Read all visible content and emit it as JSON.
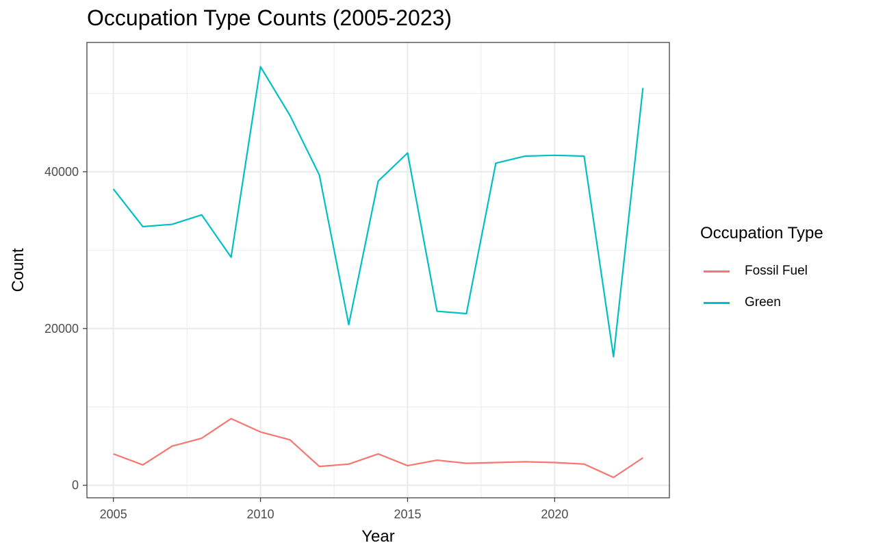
{
  "chart_data": {
    "type": "line",
    "title": "Occupation Type Counts (2005-2023)",
    "xlabel": "Year",
    "ylabel": "Count",
    "x": [
      2005,
      2006,
      2007,
      2008,
      2009,
      2010,
      2011,
      2012,
      2013,
      2014,
      2015,
      2016,
      2017,
      2018,
      2019,
      2020,
      2021,
      2022,
      2023
    ],
    "series": [
      {
        "name": "Fossil Fuel",
        "color": "#F8766D",
        "values": [
          4000,
          2600,
          5000,
          6000,
          8500,
          6800,
          5800,
          2400,
          2700,
          4000,
          2500,
          3200,
          2800,
          2900,
          3000,
          2900,
          2700,
          1000,
          3500
        ]
      },
      {
        "name": "Green",
        "color": "#00BFC4",
        "values": [
          37800,
          33000,
          33300,
          34500,
          29100,
          53400,
          47200,
          39600,
          20500,
          38800,
          42400,
          22200,
          21900,
          41100,
          42000,
          42100,
          42000,
          16400,
          50700
        ]
      }
    ],
    "xticks": [
      2005,
      2010,
      2015,
      2020
    ],
    "xtick_labels": [
      "2005",
      "2010",
      "2015",
      "2020"
    ],
    "yticks": [
      0,
      20000,
      40000
    ],
    "ytick_labels": [
      "0",
      "20000",
      "40000"
    ],
    "xlim": [
      2004.1,
      2023.9
    ],
    "ylim": [
      -1600,
      56500
    ],
    "grid": true,
    "legend": {
      "title": "Occupation Type",
      "position": "right"
    }
  }
}
